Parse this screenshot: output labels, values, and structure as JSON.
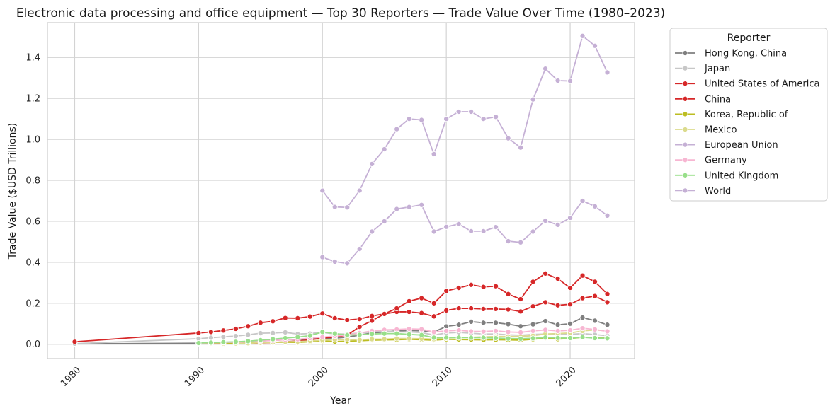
{
  "chart_data": {
    "type": "line",
    "title": "Electronic data processing and office equipment — Top 30 Reporters — Trade Value Over Time (1980–2023)",
    "xlabel": "Year",
    "ylabel": "Trade Value ($USD Trillions)",
    "xlim": [
      1977.8,
      2025.2
    ],
    "ylim": [
      -0.07,
      1.57
    ],
    "xticks": [
      1980,
      1990,
      2000,
      2010,
      2020
    ],
    "yticks": [
      0.0,
      0.2,
      0.4,
      0.6,
      0.8,
      1.0,
      1.2,
      1.4
    ],
    "xtick_labels": [
      "1980",
      "1990",
      "2000",
      "2010",
      "2020"
    ],
    "ytick_labels": [
      "0.0",
      "0.2",
      "0.4",
      "0.6",
      "0.8",
      "1.0",
      "1.2",
      "1.4"
    ],
    "grid": true,
    "legend_title": "Reporter",
    "legend_position": "outside-right-top",
    "series": [
      {
        "name": "Hong Kong, China",
        "color": "#7f7f7f",
        "x": [
          1980,
          1990,
          1991,
          1992,
          1993,
          1994,
          1995,
          1996,
          1997,
          1998,
          1999,
          2000,
          2001,
          2002,
          2003,
          2004,
          2005,
          2006,
          2007,
          2008,
          2009,
          2010,
          2011,
          2012,
          2013,
          2014,
          2015,
          2016,
          2017,
          2018,
          2019,
          2020,
          2021,
          2022,
          2023
        ],
        "y": [
          0.002,
          0.005,
          0.006,
          0.007,
          0.009,
          0.012,
          0.016,
          0.019,
          0.022,
          0.023,
          0.025,
          0.03,
          0.03,
          0.034,
          0.045,
          0.055,
          0.06,
          0.065,
          0.067,
          0.065,
          0.06,
          0.087,
          0.095,
          0.11,
          0.105,
          0.105,
          0.098,
          0.088,
          0.097,
          0.113,
          0.095,
          0.1,
          0.13,
          0.115,
          0.095
        ]
      },
      {
        "name": "Japan",
        "color": "#c7c7c7",
        "x": [
          1980,
          1990,
          1991,
          1992,
          1993,
          1994,
          1995,
          1996,
          1997,
          1998,
          1999,
          2000,
          2001,
          2002,
          2003,
          2004,
          2005,
          2006,
          2007,
          2008,
          2009,
          2010,
          2011,
          2012,
          2013,
          2014,
          2015,
          2016,
          2017,
          2018,
          2019,
          2020,
          2021,
          2022,
          2023
        ],
        "y": [
          0.003,
          0.027,
          0.032,
          0.036,
          0.04,
          0.046,
          0.054,
          0.055,
          0.058,
          0.05,
          0.052,
          0.058,
          0.05,
          0.05,
          0.055,
          0.06,
          0.065,
          0.06,
          0.06,
          0.057,
          0.045,
          0.055,
          0.058,
          0.054,
          0.05,
          0.05,
          0.046,
          0.044,
          0.048,
          0.05,
          0.047,
          0.048,
          0.052,
          0.047,
          0.042
        ]
      },
      {
        "name": "United States of America",
        "color": "#d62728",
        "x": [
          1980,
          1990,
          1991,
          1992,
          1993,
          1994,
          1995,
          1996,
          1997,
          1998,
          1999,
          2000,
          2001,
          2002,
          2003,
          2004,
          2005,
          2006,
          2007,
          2008,
          2009,
          2010,
          2011,
          2012,
          2013,
          2014,
          2015,
          2016,
          2017,
          2018,
          2019,
          2020,
          2021,
          2022,
          2023
        ],
        "y": [
          0.012,
          0.055,
          0.06,
          0.067,
          0.075,
          0.088,
          0.105,
          0.112,
          0.128,
          0.127,
          0.135,
          0.15,
          0.127,
          0.118,
          0.123,
          0.138,
          0.148,
          0.158,
          0.158,
          0.152,
          0.136,
          0.165,
          0.175,
          0.175,
          0.172,
          0.172,
          0.17,
          0.16,
          0.185,
          0.205,
          0.19,
          0.195,
          0.225,
          0.235,
          0.205
        ]
      },
      {
        "name": "China",
        "color": "#d62728",
        "x": [
          1992,
          1993,
          1994,
          1995,
          1996,
          1997,
          1998,
          1999,
          2000,
          2001,
          2002,
          2003,
          2004,
          2005,
          2006,
          2007,
          2008,
          2009,
          2010,
          2011,
          2012,
          2013,
          2014,
          2015,
          2016,
          2017,
          2018,
          2019,
          2020,
          2021,
          2022,
          2023
        ],
        "y": [
          0.002,
          0.003,
          0.004,
          0.006,
          0.008,
          0.012,
          0.016,
          0.022,
          0.03,
          0.035,
          0.045,
          0.085,
          0.115,
          0.148,
          0.175,
          0.21,
          0.225,
          0.2,
          0.26,
          0.275,
          0.29,
          0.28,
          0.283,
          0.245,
          0.22,
          0.305,
          0.345,
          0.32,
          0.275,
          0.335,
          0.305,
          0.245
        ]
      },
      {
        "name": "Korea, Republic of",
        "color": "#bcbd22",
        "x": [
          1990,
          1991,
          1992,
          1993,
          1994,
          1995,
          1996,
          1997,
          1998,
          1999,
          2000,
          2001,
          2002,
          2003,
          2004,
          2005,
          2006,
          2007,
          2008,
          2009,
          2010,
          2011,
          2012,
          2013,
          2014,
          2015,
          2016,
          2017,
          2018,
          2019,
          2020,
          2021,
          2022,
          2023
        ],
        "y": [
          0.003,
          0.004,
          0.004,
          0.005,
          0.006,
          0.008,
          0.009,
          0.01,
          0.009,
          0.012,
          0.016,
          0.013,
          0.015,
          0.017,
          0.02,
          0.021,
          0.022,
          0.024,
          0.022,
          0.02,
          0.024,
          0.023,
          0.022,
          0.021,
          0.022,
          0.021,
          0.02,
          0.024,
          0.03,
          0.025,
          0.028,
          0.034,
          0.033,
          0.03
        ]
      },
      {
        "name": "Mexico",
        "color": "#dbdb8d",
        "x": [
          1993,
          1994,
          1995,
          1996,
          1997,
          1998,
          1999,
          2000,
          2001,
          2002,
          2003,
          2004,
          2005,
          2006,
          2007,
          2008,
          2009,
          2010,
          2011,
          2012,
          2013,
          2014,
          2015,
          2016,
          2017,
          2018,
          2019,
          2020,
          2021,
          2022,
          2023
        ],
        "y": [
          0.004,
          0.005,
          0.007,
          0.009,
          0.012,
          0.013,
          0.016,
          0.02,
          0.022,
          0.023,
          0.022,
          0.025,
          0.025,
          0.028,
          0.028,
          0.027,
          0.025,
          0.03,
          0.032,
          0.034,
          0.036,
          0.038,
          0.038,
          0.038,
          0.042,
          0.05,
          0.052,
          0.055,
          0.065,
          0.07,
          0.065
        ]
      },
      {
        "name": "European Union",
        "color": "#c5b0d5",
        "x": [
          2000,
          2001,
          2002,
          2003,
          2004,
          2005,
          2006,
          2007,
          2008,
          2009,
          2010,
          2011,
          2012,
          2013,
          2014,
          2015,
          2016,
          2017,
          2018,
          2019,
          2020,
          2021,
          2022,
          2023
        ],
        "y": [
          0.425,
          0.403,
          0.395,
          0.465,
          0.55,
          0.6,
          0.66,
          0.67,
          0.68,
          0.55,
          0.573,
          0.587,
          0.552,
          0.552,
          0.572,
          0.503,
          0.497,
          0.55,
          0.603,
          0.583,
          0.617,
          0.7,
          0.673,
          0.628
        ]
      },
      {
        "name": "Germany",
        "color": "#f7b6d2",
        "x": [
          1990,
          1991,
          1992,
          1993,
          1994,
          1995,
          1996,
          1997,
          1998,
          1999,
          2000,
          2001,
          2002,
          2003,
          2004,
          2005,
          2006,
          2007,
          2008,
          2009,
          2010,
          2011,
          2012,
          2013,
          2014,
          2015,
          2016,
          2017,
          2018,
          2019,
          2020,
          2021,
          2022,
          2023
        ],
        "y": [
          0.005,
          0.007,
          0.008,
          0.01,
          0.012,
          0.016,
          0.018,
          0.022,
          0.024,
          0.03,
          0.035,
          0.04,
          0.045,
          0.055,
          0.065,
          0.07,
          0.072,
          0.075,
          0.073,
          0.06,
          0.065,
          0.068,
          0.063,
          0.062,
          0.065,
          0.06,
          0.058,
          0.065,
          0.07,
          0.065,
          0.068,
          0.078,
          0.072,
          0.063
        ]
      },
      {
        "name": "United Kingdom",
        "color": "#98df8a",
        "x": [
          1990,
          1991,
          1992,
          1993,
          1994,
          1995,
          1996,
          1997,
          1998,
          1999,
          2000,
          2001,
          2002,
          2003,
          2004,
          2005,
          2006,
          2007,
          2008,
          2009,
          2010,
          2011,
          2012,
          2013,
          2014,
          2015,
          2016,
          2017,
          2018,
          2019,
          2020,
          2021,
          2022,
          2023
        ],
        "y": [
          0.006,
          0.008,
          0.01,
          0.012,
          0.015,
          0.02,
          0.025,
          0.03,
          0.035,
          0.042,
          0.06,
          0.052,
          0.045,
          0.046,
          0.05,
          0.052,
          0.052,
          0.048,
          0.045,
          0.032,
          0.032,
          0.033,
          0.032,
          0.032,
          0.03,
          0.028,
          0.027,
          0.029,
          0.033,
          0.031,
          0.03,
          0.034,
          0.03,
          0.029
        ]
      },
      {
        "name": "World",
        "color": "#c5b0d5",
        "x": [
          2000,
          2001,
          2002,
          2003,
          2004,
          2005,
          2006,
          2007,
          2008,
          2009,
          2010,
          2011,
          2012,
          2013,
          2014,
          2015,
          2016,
          2017,
          2018,
          2019,
          2020,
          2021,
          2022,
          2023
        ],
        "y": [
          0.75,
          0.67,
          0.668,
          0.75,
          0.88,
          0.952,
          1.05,
          1.1,
          1.095,
          0.928,
          1.1,
          1.135,
          1.135,
          1.1,
          1.11,
          1.005,
          0.96,
          1.195,
          1.345,
          1.287,
          1.285,
          1.505,
          1.457,
          1.327
        ]
      }
    ]
  }
}
